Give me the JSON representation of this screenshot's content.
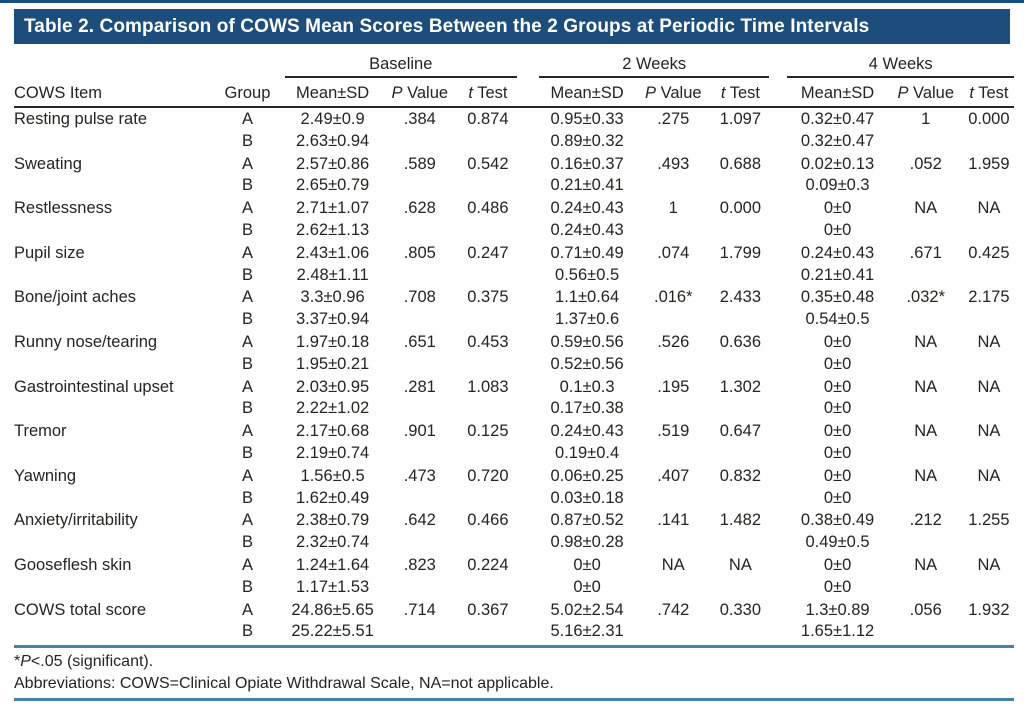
{
  "header": {
    "title": "Table 2. Comparison of COWS Mean Scores Between the 2 Groups at Periodic Time Intervals"
  },
  "colors": {
    "title_bar": "#1d4e7b",
    "rule_blue": "#4483ab",
    "header_line": "#262626",
    "text": "#262423"
  },
  "table": {
    "item_header": "COWS Item",
    "group_header": "Group",
    "time_groups": [
      {
        "label": "Baseline",
        "sub": [
          "Mean±SD",
          "P Value",
          "t Test"
        ]
      },
      {
        "label": "2 Weeks",
        "sub": [
          "Mean±SD",
          "P Value",
          "t Test"
        ]
      },
      {
        "label": "4 Weeks",
        "sub": [
          "Mean±SD",
          "P Value",
          "t Test"
        ]
      }
    ],
    "group_labels": [
      "A",
      "B"
    ],
    "rows": [
      {
        "item": "Resting pulse rate",
        "a": [
          "2.49±0.9",
          ".384",
          "0.874",
          "0.95±0.33",
          ".275",
          "1.097",
          "0.32±0.47",
          "1",
          "0.000"
        ],
        "b": [
          "2.63±0.94",
          "0.89±0.32",
          "0.32±0.47"
        ]
      },
      {
        "item": "Sweating",
        "a": [
          "2.57±0.86",
          ".589",
          "0.542",
          "0.16±0.37",
          ".493",
          "0.688",
          "0.02±0.13",
          ".052",
          "1.959"
        ],
        "b": [
          "2.65±0.79",
          "0.21±0.41",
          "0.09±0.3"
        ]
      },
      {
        "item": "Restlessness",
        "a": [
          "2.71±1.07",
          ".628",
          "0.486",
          "0.24±0.43",
          "1",
          "0.000",
          "0±0",
          "NA",
          "NA"
        ],
        "b": [
          "2.62±1.13",
          "0.24±0.43",
          "0±0"
        ]
      },
      {
        "item": "Pupil size",
        "a": [
          "2.43±1.06",
          ".805",
          "0.247",
          "0.71±0.49",
          ".074",
          "1.799",
          "0.24±0.43",
          ".671",
          "0.425"
        ],
        "b": [
          "2.48±1.11",
          "0.56±0.5",
          "0.21±0.41"
        ]
      },
      {
        "item": "Bone/joint aches",
        "a": [
          "3.3±0.96",
          ".708",
          "0.375",
          "1.1±0.64",
          ".016*",
          "2.433",
          "0.35±0.48",
          ".032*",
          "2.175"
        ],
        "b": [
          "3.37±0.94",
          "1.37±0.6",
          "0.54±0.5"
        ]
      },
      {
        "item": "Runny nose/tearing",
        "a": [
          "1.97±0.18",
          ".651",
          "0.453",
          "0.59±0.56",
          ".526",
          "0.636",
          "0±0",
          "NA",
          "NA"
        ],
        "b": [
          "1.95±0.21",
          "0.52±0.56",
          "0±0"
        ]
      },
      {
        "item": "Gastrointestinal upset",
        "a": [
          "2.03±0.95",
          ".281",
          "1.083",
          "0.1±0.3",
          ".195",
          "1.302",
          "0±0",
          "NA",
          "NA"
        ],
        "b": [
          "2.22±1.02",
          "0.17±0.38",
          "0±0"
        ]
      },
      {
        "item": "Tremor",
        "a": [
          "2.17±0.68",
          ".901",
          "0.125",
          "0.24±0.43",
          ".519",
          "0.647",
          "0±0",
          "NA",
          "NA"
        ],
        "b": [
          "2.19±0.74",
          "0.19±0.4",
          "0±0"
        ]
      },
      {
        "item": "Yawning",
        "a": [
          "1.56±0.5",
          ".473",
          "0.720",
          "0.06±0.25",
          ".407",
          "0.832",
          "0±0",
          "NA",
          "NA"
        ],
        "b": [
          "1.62±0.49",
          "0.03±0.18",
          "0±0"
        ]
      },
      {
        "item": "Anxiety/irritability",
        "a": [
          "2.38±0.79",
          ".642",
          "0.466",
          "0.87±0.52",
          ".141",
          "1.482",
          "0.38±0.49",
          ".212",
          "1.255"
        ],
        "b": [
          "2.32±0.74",
          "0.98±0.28",
          "0.49±0.5"
        ]
      },
      {
        "item": "Gooseflesh skin",
        "a": [
          "1.24±1.64",
          ".823",
          "0.224",
          "0±0",
          "NA",
          "NA",
          "0±0",
          "NA",
          "NA"
        ],
        "b": [
          "1.17±1.53",
          "0±0",
          "0±0"
        ]
      },
      {
        "item": "COWS total score",
        "a": [
          "24.86±5.65",
          ".714",
          "0.367",
          "5.02±2.54",
          ".742",
          "0.330",
          "1.3±0.89",
          ".056",
          "1.932"
        ],
        "b": [
          "25.22±5.51",
          "5.16±2.31",
          "1.65±1.12"
        ]
      }
    ]
  },
  "footnotes": {
    "significance": {
      "star": "*",
      "italic": "P",
      "rest": "<.05 (significant)."
    },
    "abbreviations": "Abbreviations: COWS=Clinical Opiate Withdrawal Scale, NA=not applicable."
  }
}
